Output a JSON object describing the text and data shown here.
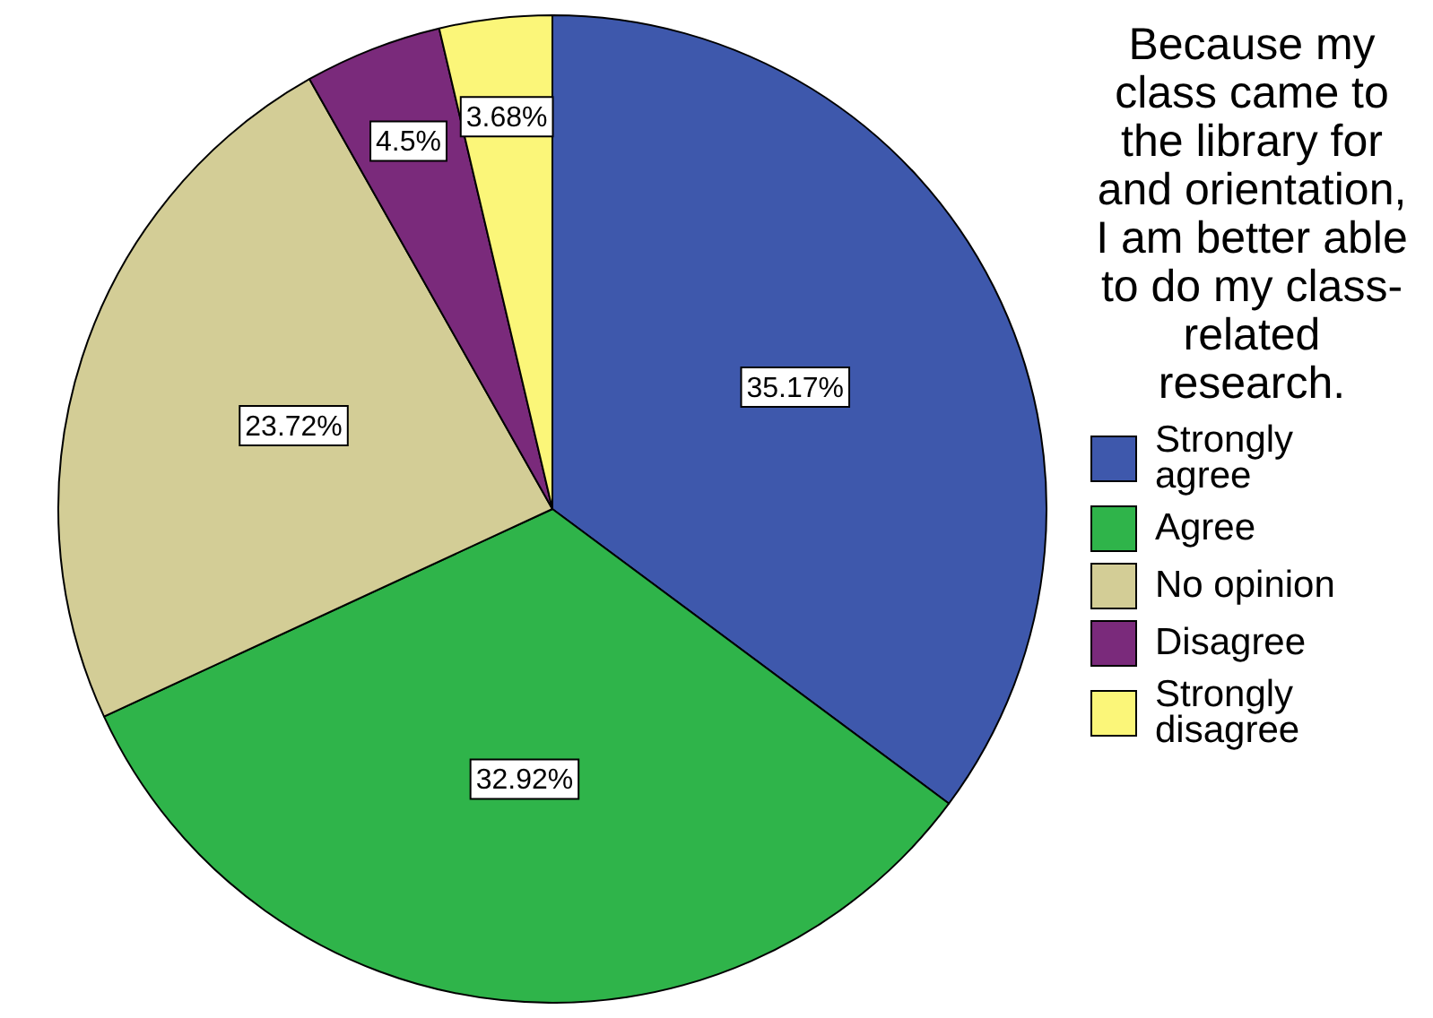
{
  "chart_data": {
    "type": "pie",
    "legend_title": "Because my class came to the library for and orientation, I am better able to do my class-related research.",
    "legend": "right",
    "categories": [
      "Strongly agree",
      "Agree",
      "No opinion",
      "Disagree",
      "Strongly disagree"
    ],
    "values": [
      35.17,
      32.92,
      23.72,
      4.5,
      3.68
    ],
    "colors": [
      "#3e58ac",
      "#2fb44a",
      "#d3cd96",
      "#7a2a7b",
      "#fbf679"
    ],
    "value_labels": [
      "35.17%",
      "32.92%",
      "23.72%",
      "4.5%",
      "3.68%"
    ]
  }
}
